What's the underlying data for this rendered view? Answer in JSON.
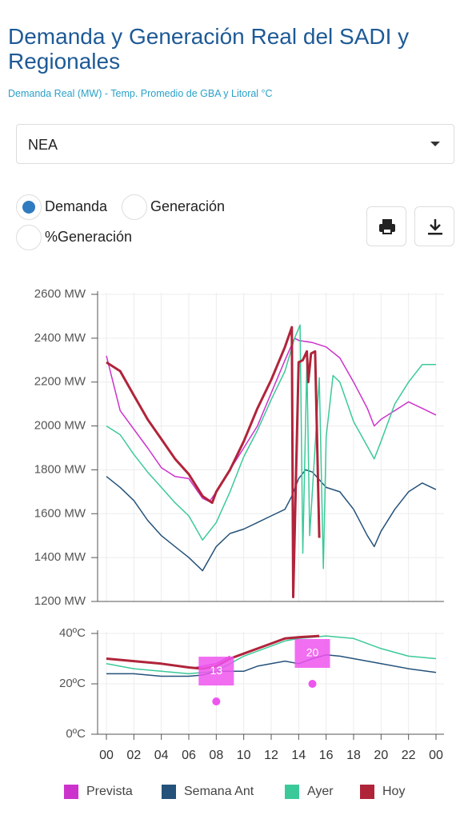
{
  "header": {
    "title": "Demanda y Generación Real del SADI y Regionales",
    "subtitle": "Demanda Real (MW) - Temp. Promedio de GBA y Litoral °C"
  },
  "controls": {
    "region": "NEA",
    "options": [
      "Demanda",
      "Generación",
      "%Generación"
    ],
    "selected": 0
  },
  "chart_data": [
    {
      "type": "line",
      "xlim": [
        0,
        24
      ],
      "ylim": [
        1200,
        2600
      ],
      "grid": true,
      "yticks": [
        {
          "value": 1200,
          "label": "1200 MW"
        },
        {
          "value": 1400,
          "label": "1400 MW"
        },
        {
          "value": 1600,
          "label": "1600 MW"
        },
        {
          "value": 1800,
          "label": "1800 MW"
        },
        {
          "value": 2000,
          "label": "2000 MW"
        },
        {
          "value": 2200,
          "label": "2200 MW"
        },
        {
          "value": 2400,
          "label": "2400 MW"
        },
        {
          "value": 2600,
          "label": "2600 MW"
        }
      ],
      "series": [
        {
          "name": "Prevista",
          "color": "#cc33cc",
          "x": [
            0,
            1,
            3,
            4,
            5,
            6,
            7,
            7.5,
            8,
            9,
            10,
            11,
            12,
            13,
            13.7,
            14,
            15,
            16,
            17,
            18,
            19,
            19.5,
            20,
            21,
            22,
            23,
            24
          ],
          "values": [
            2320,
            2070,
            1900,
            1810,
            1770,
            1760,
            1670,
            1655,
            1700,
            1800,
            1900,
            2000,
            2150,
            2300,
            2400,
            2390,
            2380,
            2360,
            2310,
            2200,
            2080,
            2000,
            2030,
            2070,
            2110,
            2080,
            2050
          ]
        },
        {
          "name": "Semana Ant",
          "color": "#24527a",
          "x": [
            0,
            1,
            2,
            3,
            4,
            5,
            6,
            7,
            8,
            9,
            10,
            11,
            12,
            13,
            13.5,
            14,
            14.5,
            15,
            16,
            17,
            18,
            19,
            19.5,
            20,
            21,
            22,
            23,
            24
          ],
          "values": [
            1770,
            1720,
            1660,
            1570,
            1500,
            1450,
            1400,
            1340,
            1450,
            1510,
            1530,
            1560,
            1590,
            1620,
            1680,
            1760,
            1800,
            1790,
            1720,
            1700,
            1620,
            1500,
            1450,
            1520,
            1620,
            1700,
            1740,
            1710
          ]
        },
        {
          "name": "Ayer",
          "color": "#3cc99a",
          "x": [
            0,
            1,
            2,
            3,
            4,
            5,
            6,
            7,
            8,
            9,
            10,
            11,
            12,
            13,
            13.7,
            14.1,
            14.3,
            14.6,
            14.8,
            15.5,
            15.8,
            16,
            16.5,
            17,
            18,
            18.8,
            19.5,
            20,
            21,
            22,
            23,
            24
          ],
          "values": [
            2000,
            1960,
            1870,
            1790,
            1720,
            1650,
            1590,
            1480,
            1560,
            1700,
            1860,
            1980,
            2120,
            2250,
            2400,
            2460,
            1420,
            2290,
            1500,
            2220,
            1350,
            1950,
            2230,
            2200,
            2020,
            1930,
            1850,
            1930,
            2100,
            2200,
            2280,
            2280
          ]
        },
        {
          "name": "Hoy",
          "color": "#b0243a",
          "x": [
            0,
            1,
            2,
            3,
            4,
            5,
            6,
            7,
            7.7,
            8,
            9,
            10,
            11,
            12,
            13,
            13.5,
            13.6,
            14,
            14.3,
            14.6,
            14.7,
            14.9,
            15.2,
            15.5
          ],
          "values": [
            2290,
            2250,
            2140,
            2030,
            1940,
            1850,
            1780,
            1680,
            1650,
            1700,
            1800,
            1930,
            2080,
            2210,
            2360,
            2450,
            1220,
            2290,
            2300,
            2340,
            2200,
            2330,
            2340,
            1490
          ]
        }
      ]
    },
    {
      "type": "line",
      "xlim": [
        0,
        24
      ],
      "ylim": [
        0,
        40
      ],
      "grid": true,
      "yticks": [
        {
          "value": 0,
          "label": "0ºC"
        },
        {
          "value": 20,
          "label": "20ºC"
        },
        {
          "value": 40,
          "label": "40ºC"
        }
      ],
      "xticks": [
        {
          "value": 0,
          "label": "00"
        },
        {
          "value": 2,
          "label": "02"
        },
        {
          "value": 4,
          "label": "04"
        },
        {
          "value": 6,
          "label": "06"
        },
        {
          "value": 8,
          "label": "08"
        },
        10,
        12,
        14,
        16,
        18,
        20,
        22,
        {
          "value": 24,
          "label": "00"
        }
      ],
      "series": [
        {
          "color": "#24527a",
          "x": [
            0,
            2,
            4,
            6,
            7,
            8,
            10,
            11,
            12,
            13,
            14,
            15,
            16,
            17,
            18,
            20,
            22,
            24
          ],
          "values": [
            24,
            24,
            23,
            23,
            23.5,
            25,
            25,
            27,
            28,
            29,
            28,
            30,
            31.5,
            31,
            30,
            28,
            26,
            24.5
          ]
        },
        {
          "color": "#3cc99a",
          "x": [
            0,
            2,
            4,
            6,
            7,
            8,
            9,
            10,
            12,
            13,
            14,
            16,
            17,
            18,
            20,
            22,
            24
          ],
          "values": [
            28,
            26,
            25,
            24,
            24.5,
            25,
            28,
            31,
            35,
            37,
            38,
            39,
            38.5,
            38,
            34,
            31,
            30
          ]
        },
        {
          "color": "#cc33cc",
          "x": [
            6.5,
            8,
            9
          ],
          "values": [
            26.5,
            28,
            31
          ]
        },
        {
          "color": "#b0243a",
          "x": [
            0,
            2,
            4,
            6,
            7,
            8,
            9,
            10,
            12,
            13,
            14,
            15.5
          ],
          "values": [
            30,
            29,
            28,
            26.5,
            26,
            27,
            30,
            32,
            36,
            38,
            38.5,
            39
          ]
        }
      ],
      "points": {
        "color": "#ee55ee",
        "x": [
          8,
          15
        ],
        "values": [
          13,
          20
        ]
      }
    }
  ]
}
